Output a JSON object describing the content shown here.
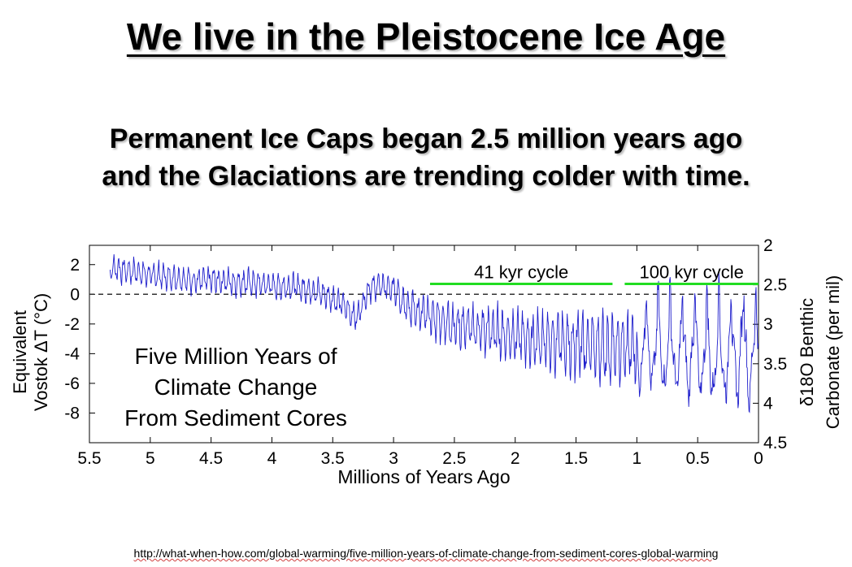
{
  "page": {
    "title": "We live in the Pleistocene Ice Age",
    "subtitle_line1": "Permanent Ice Caps began 2.5 million years ago",
    "subtitle_line2": "and the Glaciations are trending colder with time.",
    "source_url": "http://what-when-how.com/global-warming/five-million-years-of-climate-change-from-sediment-cores-global-warming"
  },
  "chart_data": {
    "type": "line",
    "title": "",
    "annotation_lines": [
      "Five Million Years of",
      "Climate Change",
      "From Sediment Cores"
    ],
    "xlabel": "Millions of Years Ago",
    "ylabel_left": [
      "Equivalent",
      "Vostok ΔT (°C)"
    ],
    "ylabel_right": [
      "δ18O Benthic",
      "Carbonate (per mil)"
    ],
    "xlim": [
      5.5,
      0
    ],
    "ylim_left": [
      -10,
      3.3
    ],
    "ylim_right": [
      4.5,
      2
    ],
    "x_ticks": [
      5.5,
      5,
      4.5,
      4,
      3.5,
      3,
      2.5,
      2,
      1.5,
      1,
      0.5,
      0
    ],
    "x_tick_labels": [
      "5.5",
      "5",
      "4.5",
      "4",
      "3.5",
      "3",
      "2.5",
      "2",
      "1.5",
      "1",
      "0.5",
      "0"
    ],
    "y_left_ticks": [
      2,
      0,
      -2,
      -4,
      -6,
      -8
    ],
    "y_left_tick_labels": [
      "2",
      "0",
      "-2",
      "-4",
      "-6",
      "-8"
    ],
    "y_right_ticks": [
      2,
      2.5,
      3,
      3.5,
      4,
      4.5
    ],
    "y_right_tick_labels": [
      "2",
      "2.5",
      "3",
      "3.5",
      "4",
      "4.5"
    ],
    "reference_line": {
      "y": 0,
      "style": "dashed"
    },
    "cycles": [
      {
        "label": "41 kyr cycle",
        "x_start": 2.7,
        "x_end": 1.2,
        "y": 0.7,
        "color": "#22dd22"
      },
      {
        "label": "100 kyr cycle",
        "x_start": 1.1,
        "x_end": 0,
        "y": 0.7,
        "color": "#22dd22"
      }
    ],
    "series": [
      {
        "color": "#1f1fcc",
        "x": [
          5.33,
          5.2,
          5.1,
          5.0,
          4.9,
          4.8,
          4.7,
          4.6,
          4.5,
          4.4,
          4.3,
          4.2,
          4.1,
          4.0,
          3.9,
          3.8,
          3.7,
          3.6,
          3.5,
          3.4,
          3.35,
          3.3,
          3.25,
          3.2,
          3.1,
          3.0,
          2.9,
          2.8,
          2.7,
          2.6,
          2.5,
          2.4,
          2.3,
          2.2,
          2.1,
          2.0,
          1.9,
          1.8,
          1.7,
          1.6,
          1.5,
          1.4,
          1.3,
          1.2,
          1.1,
          1.0,
          0.9,
          0.8,
          0.7,
          0.6,
          0.5,
          0.45,
          0.4,
          0.3,
          0.2,
          0.13,
          0.1,
          0.05,
          0.0
        ],
        "y": [
          1.8,
          1.6,
          1.5,
          1.3,
          1.2,
          1.1,
          1.0,
          0.9,
          1.0,
          0.9,
          0.8,
          0.8,
          0.7,
          0.6,
          0.5,
          0.5,
          0.3,
          0.1,
          -0.3,
          -0.8,
          -1.3,
          -1.6,
          -0.5,
          0.4,
          0.6,
          0.3,
          -0.6,
          -1.2,
          -1.5,
          -1.8,
          -2.1,
          -2.2,
          -2.4,
          -2.5,
          -2.7,
          -2.8,
          -3.0,
          -3.1,
          -3.2,
          -3.3,
          -3.4,
          -3.5,
          -3.6,
          -3.7,
          -3.6,
          -3.7,
          -3.8,
          -3.9,
          -4.0,
          -4.1,
          -4.2,
          -4.3,
          -4.3,
          -4.2,
          -4.1,
          -4.0,
          -4.1,
          -4.3,
          -4.5
        ]
      }
    ]
  }
}
